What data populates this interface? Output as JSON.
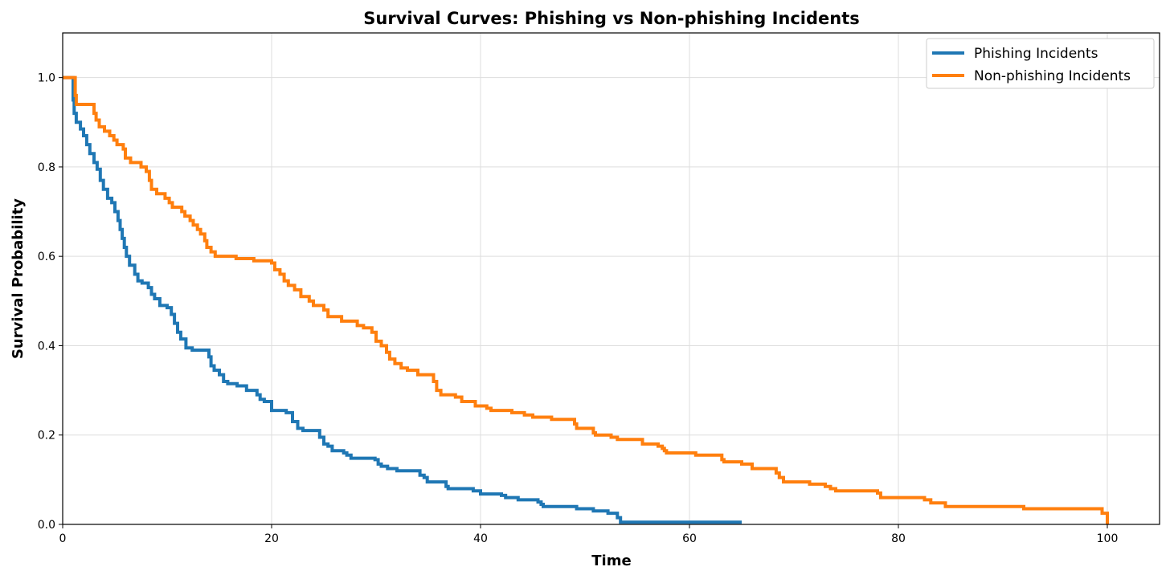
{
  "chart_data": {
    "type": "line",
    "title": "Survival Curves: Phishing vs Non-phishing Incidents",
    "xlabel": "Time",
    "ylabel": "Survival Probability",
    "xlim": [
      0,
      105
    ],
    "ylim": [
      0,
      1.1
    ],
    "xticks": [
      0,
      20,
      40,
      60,
      80,
      100
    ],
    "yticks": [
      0.0,
      0.2,
      0.4,
      0.6,
      0.8,
      1.0
    ],
    "xtick_labels": [
      "0",
      "20",
      "40",
      "60",
      "80",
      "100"
    ],
    "ytick_labels": [
      "0.0",
      "0.2",
      "0.4",
      "0.6",
      "0.8",
      "1.0"
    ],
    "grid": true,
    "legend_position": "top-right",
    "step": true,
    "series": [
      {
        "name": "Phishing Incidents",
        "color": "#1f77b4",
        "points": [
          [
            0,
            1.0
          ],
          [
            0.8,
            1.0
          ],
          [
            1.0,
            0.95
          ],
          [
            1.1,
            0.92
          ],
          [
            1.3,
            0.9
          ],
          [
            1.7,
            0.885
          ],
          [
            2.0,
            0.87
          ],
          [
            2.3,
            0.85
          ],
          [
            2.6,
            0.83
          ],
          [
            3.0,
            0.81
          ],
          [
            3.3,
            0.795
          ],
          [
            3.6,
            0.77
          ],
          [
            3.9,
            0.75
          ],
          [
            4.3,
            0.73
          ],
          [
            4.7,
            0.72
          ],
          [
            5.0,
            0.7
          ],
          [
            5.3,
            0.68
          ],
          [
            5.5,
            0.66
          ],
          [
            5.7,
            0.64
          ],
          [
            5.9,
            0.62
          ],
          [
            6.1,
            0.6
          ],
          [
            6.4,
            0.58
          ],
          [
            6.9,
            0.56
          ],
          [
            7.2,
            0.545
          ],
          [
            7.6,
            0.54
          ],
          [
            8.2,
            0.53
          ],
          [
            8.5,
            0.515
          ],
          [
            8.8,
            0.505
          ],
          [
            9.3,
            0.49
          ],
          [
            10.0,
            0.485
          ],
          [
            10.4,
            0.47
          ],
          [
            10.7,
            0.45
          ],
          [
            11.0,
            0.43
          ],
          [
            11.3,
            0.415
          ],
          [
            11.8,
            0.395
          ],
          [
            12.4,
            0.39
          ],
          [
            14.0,
            0.375
          ],
          [
            14.2,
            0.355
          ],
          [
            14.5,
            0.345
          ],
          [
            15.0,
            0.335
          ],
          [
            15.4,
            0.32
          ],
          [
            15.8,
            0.315
          ],
          [
            16.7,
            0.31
          ],
          [
            17.6,
            0.3
          ],
          [
            18.6,
            0.29
          ],
          [
            18.9,
            0.28
          ],
          [
            19.3,
            0.275
          ],
          [
            20.0,
            0.255
          ],
          [
            21.4,
            0.25
          ],
          [
            22.0,
            0.23
          ],
          [
            22.5,
            0.215
          ],
          [
            23.0,
            0.21
          ],
          [
            24.6,
            0.195
          ],
          [
            25.0,
            0.18
          ],
          [
            25.4,
            0.175
          ],
          [
            25.8,
            0.165
          ],
          [
            26.9,
            0.16
          ],
          [
            27.2,
            0.155
          ],
          [
            27.6,
            0.148
          ],
          [
            29.9,
            0.145
          ],
          [
            30.2,
            0.135
          ],
          [
            30.5,
            0.13
          ],
          [
            31.1,
            0.125
          ],
          [
            32.0,
            0.12
          ],
          [
            34.2,
            0.11
          ],
          [
            34.6,
            0.105
          ],
          [
            34.9,
            0.095
          ],
          [
            36.7,
            0.085
          ],
          [
            36.9,
            0.08
          ],
          [
            39.3,
            0.075
          ],
          [
            40.0,
            0.068
          ],
          [
            42.0,
            0.065
          ],
          [
            42.4,
            0.06
          ],
          [
            43.6,
            0.055
          ],
          [
            45.5,
            0.05
          ],
          [
            45.8,
            0.045
          ],
          [
            46.0,
            0.04
          ],
          [
            49.2,
            0.035
          ],
          [
            50.8,
            0.03
          ],
          [
            52.2,
            0.025
          ],
          [
            53.1,
            0.015
          ],
          [
            53.4,
            0.005
          ],
          [
            65.0,
            0.005
          ]
        ]
      },
      {
        "name": "Non-phishing Incidents",
        "color": "#ff7f0e",
        "points": [
          [
            0,
            1.0
          ],
          [
            1.1,
            1.0
          ],
          [
            1.2,
            0.96
          ],
          [
            1.3,
            0.94
          ],
          [
            3.0,
            0.92
          ],
          [
            3.2,
            0.905
          ],
          [
            3.5,
            0.89
          ],
          [
            4.0,
            0.88
          ],
          [
            4.5,
            0.87
          ],
          [
            4.9,
            0.86
          ],
          [
            5.2,
            0.85
          ],
          [
            5.8,
            0.84
          ],
          [
            6.0,
            0.82
          ],
          [
            6.5,
            0.81
          ],
          [
            7.5,
            0.8
          ],
          [
            8.0,
            0.79
          ],
          [
            8.3,
            0.77
          ],
          [
            8.5,
            0.75
          ],
          [
            9.0,
            0.74
          ],
          [
            9.8,
            0.73
          ],
          [
            10.2,
            0.72
          ],
          [
            10.5,
            0.71
          ],
          [
            11.4,
            0.7
          ],
          [
            11.7,
            0.69
          ],
          [
            12.2,
            0.68
          ],
          [
            12.5,
            0.67
          ],
          [
            12.9,
            0.66
          ],
          [
            13.2,
            0.65
          ],
          [
            13.6,
            0.635
          ],
          [
            13.8,
            0.62
          ],
          [
            14.2,
            0.61
          ],
          [
            14.6,
            0.6
          ],
          [
            16.6,
            0.595
          ],
          [
            18.3,
            0.59
          ],
          [
            20.0,
            0.585
          ],
          [
            20.3,
            0.57
          ],
          [
            20.8,
            0.56
          ],
          [
            21.2,
            0.545
          ],
          [
            21.6,
            0.535
          ],
          [
            22.2,
            0.525
          ],
          [
            22.8,
            0.51
          ],
          [
            23.6,
            0.5
          ],
          [
            24.0,
            0.49
          ],
          [
            25.0,
            0.48
          ],
          [
            25.4,
            0.465
          ],
          [
            26.7,
            0.455
          ],
          [
            28.2,
            0.445
          ],
          [
            28.8,
            0.44
          ],
          [
            29.6,
            0.43
          ],
          [
            30.0,
            0.41
          ],
          [
            30.5,
            0.4
          ],
          [
            31.0,
            0.385
          ],
          [
            31.3,
            0.37
          ],
          [
            31.8,
            0.36
          ],
          [
            32.4,
            0.35
          ],
          [
            33.0,
            0.345
          ],
          [
            34.0,
            0.335
          ],
          [
            35.5,
            0.32
          ],
          [
            35.8,
            0.3
          ],
          [
            36.2,
            0.29
          ],
          [
            37.6,
            0.285
          ],
          [
            38.2,
            0.275
          ],
          [
            39.5,
            0.265
          ],
          [
            40.6,
            0.26
          ],
          [
            41.0,
            0.255
          ],
          [
            43.0,
            0.25
          ],
          [
            44.2,
            0.245
          ],
          [
            45.0,
            0.24
          ],
          [
            46.8,
            0.235
          ],
          [
            49.0,
            0.225
          ],
          [
            49.2,
            0.215
          ],
          [
            50.8,
            0.205
          ],
          [
            51.0,
            0.2
          ],
          [
            52.5,
            0.195
          ],
          [
            53.1,
            0.19
          ],
          [
            55.5,
            0.18
          ],
          [
            57.0,
            0.175
          ],
          [
            57.4,
            0.17
          ],
          [
            57.6,
            0.165
          ],
          [
            57.8,
            0.16
          ],
          [
            60.6,
            0.155
          ],
          [
            63.1,
            0.145
          ],
          [
            63.3,
            0.14
          ],
          [
            65.0,
            0.135
          ],
          [
            66.0,
            0.125
          ],
          [
            68.3,
            0.115
          ],
          [
            68.6,
            0.105
          ],
          [
            69.0,
            0.095
          ],
          [
            71.5,
            0.09
          ],
          [
            73.0,
            0.085
          ],
          [
            73.5,
            0.08
          ],
          [
            74.0,
            0.075
          ],
          [
            78.0,
            0.07
          ],
          [
            78.3,
            0.06
          ],
          [
            82.5,
            0.055
          ],
          [
            83.1,
            0.048
          ],
          [
            84.5,
            0.04
          ],
          [
            92.0,
            0.035
          ],
          [
            99.5,
            0.025
          ],
          [
            100.0,
            0.025
          ],
          [
            100.0,
            0.0
          ]
        ]
      }
    ]
  }
}
